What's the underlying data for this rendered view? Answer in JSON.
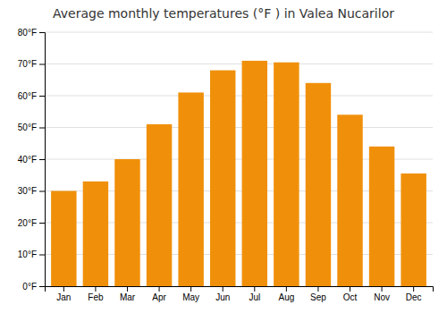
{
  "chart_data": {
    "type": "bar",
    "title": "Average monthly temperatures (°F ) in Valea Nucarilor",
    "categories": [
      "Jan",
      "Feb",
      "Mar",
      "Apr",
      "May",
      "Jun",
      "Jul",
      "Aug",
      "Sep",
      "Oct",
      "Nov",
      "Dec"
    ],
    "values": [
      30.0,
      33.0,
      40.0,
      51.0,
      61.0,
      68.0,
      71.0,
      70.5,
      64.0,
      54.0,
      44.0,
      35.5
    ],
    "color": "#F0900A",
    "ylim": [
      0,
      80
    ],
    "yticks": [
      {
        "value": 0,
        "label": "0°F"
      },
      {
        "value": 10,
        "label": "10°F"
      },
      {
        "value": 20,
        "label": "20°F"
      },
      {
        "value": 30,
        "label": "30°F"
      },
      {
        "value": 40,
        "label": "40°F"
      },
      {
        "value": 50,
        "label": "50°F"
      },
      {
        "value": 60,
        "label": "60°F"
      },
      {
        "value": 70,
        "label": "70°F"
      },
      {
        "value": 80,
        "label": "80°F"
      }
    ],
    "grid": true
  }
}
